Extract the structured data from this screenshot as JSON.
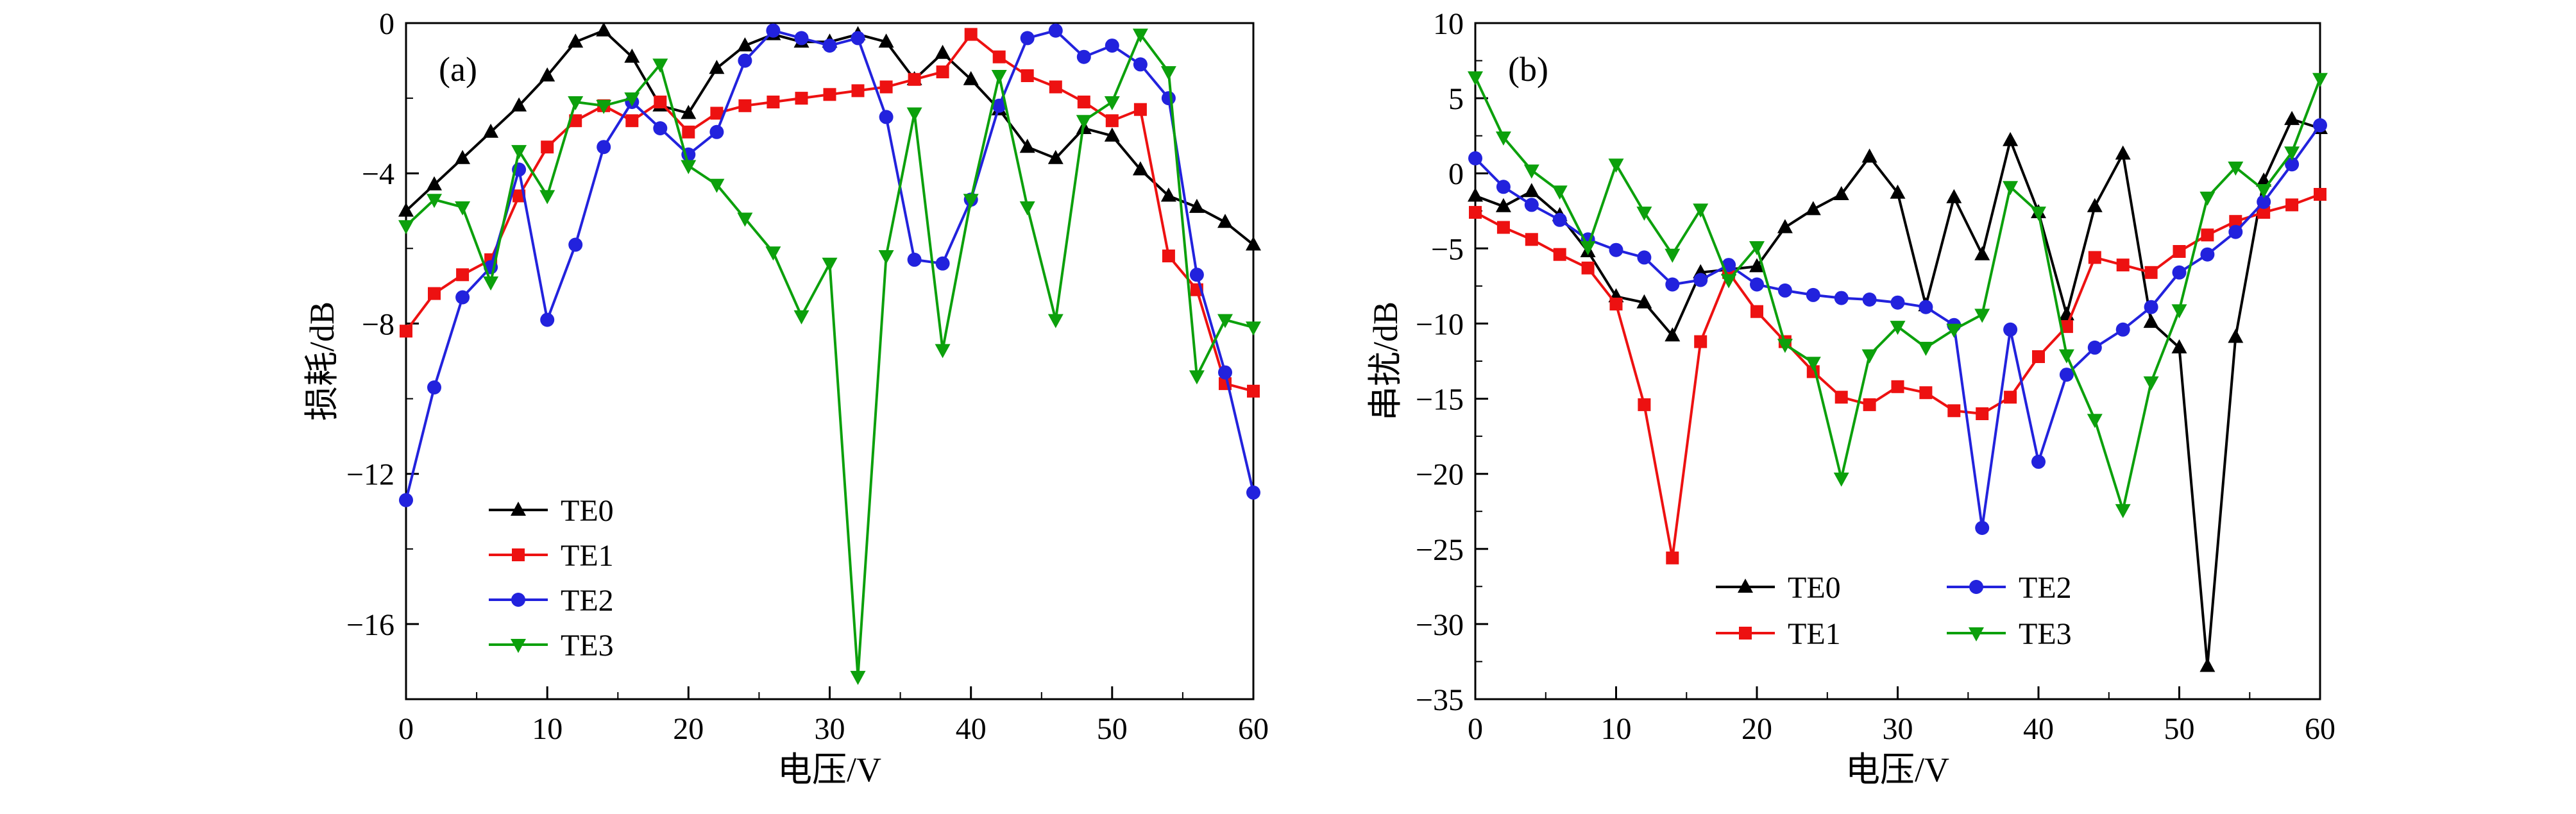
{
  "figure": {
    "background": "#ffffff",
    "panel_a_label": "(a)",
    "panel_b_label": "(b)"
  },
  "chart_data": [
    {
      "id": "a",
      "type": "line",
      "panel_label": "(a)",
      "xlabel": "电压/V",
      "ylabel": "损耗/dB",
      "xlim": [
        0,
        60
      ],
      "ylim": [
        -18,
        0
      ],
      "xticks": [
        0,
        10,
        20,
        30,
        40,
        50,
        60
      ],
      "yticks": [
        0,
        -4,
        -8,
        -12,
        -16
      ],
      "x_minor_step": 5,
      "y_minor_step": 2,
      "grid": false,
      "legend_position": "lower-left",
      "legend_columns": 1,
      "x": [
        0,
        2,
        4,
        6,
        8,
        10,
        12,
        14,
        16,
        18,
        20,
        22,
        24,
        26,
        28,
        30,
        32,
        34,
        36,
        38,
        40,
        42,
        44,
        46,
        48,
        50,
        52,
        54,
        56,
        58,
        60
      ],
      "series": [
        {
          "name": "TE0",
          "color": "#000000",
          "marker": "triangle-up",
          "values": [
            -5.0,
            -4.3,
            -3.6,
            -2.9,
            -2.2,
            -1.4,
            -0.5,
            -0.2,
            -0.9,
            -2.2,
            -2.4,
            -1.2,
            -0.6,
            -0.3,
            -0.5,
            -0.5,
            -0.3,
            -0.5,
            -1.5,
            -0.8,
            -1.5,
            -2.3,
            -3.3,
            -3.6,
            -2.8,
            -3.0,
            -3.9,
            -4.6,
            -4.9,
            -5.3,
            -5.9
          ]
        },
        {
          "name": "TE1",
          "color": "#ed1111",
          "marker": "square",
          "values": [
            -8.2,
            -7.2,
            -6.7,
            -6.3,
            -4.6,
            -3.3,
            -2.6,
            -2.2,
            -2.6,
            -2.1,
            -2.9,
            -2.4,
            -2.2,
            -2.1,
            -2.0,
            -1.9,
            -1.8,
            -1.7,
            -1.5,
            -1.3,
            -0.3,
            -0.9,
            -1.4,
            -1.7,
            -2.1,
            -2.6,
            -2.3,
            -6.2,
            -7.1,
            -9.6,
            -9.8
          ]
        },
        {
          "name": "TE2",
          "color": "#2222dd",
          "marker": "circle",
          "values": [
            -12.7,
            -9.7,
            -7.3,
            -6.5,
            -3.9,
            -7.9,
            -5.9,
            -3.3,
            -2.1,
            -2.8,
            -3.5,
            -2.9,
            -1.0,
            -0.2,
            -0.4,
            -0.6,
            -0.4,
            -2.5,
            -6.3,
            -6.4,
            -4.7,
            -2.2,
            -0.4,
            -0.2,
            -0.9,
            -0.6,
            -1.1,
            -2.0,
            -6.7,
            -9.3,
            -12.5
          ]
        },
        {
          "name": "TE3",
          "color": "#0ca00c",
          "marker": "triangle-down",
          "values": [
            -5.4,
            -4.7,
            -4.9,
            -6.9,
            -3.4,
            -4.6,
            -2.1,
            -2.2,
            -2.0,
            -1.1,
            -3.8,
            -4.3,
            -5.2,
            -6.1,
            -7.8,
            -6.4,
            -17.4,
            -6.2,
            -2.4,
            -8.7,
            -4.7,
            -1.4,
            -4.9,
            -7.9,
            -2.6,
            -2.1,
            -0.3,
            -1.3,
            -9.4,
            -7.9,
            -8.1
          ]
        }
      ]
    },
    {
      "id": "b",
      "type": "line",
      "panel_label": "(b)",
      "xlabel": "电压/V",
      "ylabel": "串扰/dB",
      "xlim": [
        0,
        60
      ],
      "ylim": [
        -35,
        10
      ],
      "xticks": [
        0,
        10,
        20,
        30,
        40,
        50,
        60
      ],
      "yticks": [
        10,
        5,
        0,
        -5,
        -10,
        -15,
        -20,
        -25,
        -30,
        -35
      ],
      "x_minor_step": 5,
      "y_minor_step": 2.5,
      "grid": false,
      "legend_position": "lower-center",
      "legend_columns": 2,
      "x": [
        0,
        2,
        4,
        6,
        8,
        10,
        12,
        14,
        16,
        18,
        20,
        22,
        24,
        26,
        28,
        30,
        32,
        34,
        36,
        38,
        40,
        42,
        44,
        46,
        48,
        50,
        52,
        54,
        56,
        58,
        60
      ],
      "series": [
        {
          "name": "TE0",
          "color": "#000000",
          "marker": "triangle-up",
          "values": [
            -1.5,
            -2.2,
            -1.2,
            -2.8,
            -5.2,
            -8.2,
            -8.6,
            -10.8,
            -6.6,
            -6.4,
            -6.2,
            -3.6,
            -2.4,
            -1.4,
            1.1,
            -1.3,
            -8.8,
            -1.6,
            -5.4,
            2.2,
            -2.6,
            -9.4,
            -2.2,
            1.3,
            -9.9,
            -11.6,
            -32.8,
            -10.9,
            -0.5,
            3.6,
            3.0
          ]
        },
        {
          "name": "TE1",
          "color": "#ed1111",
          "marker": "square",
          "values": [
            -2.6,
            -3.6,
            -4.4,
            -5.4,
            -6.3,
            -8.7,
            -15.4,
            -25.6,
            -11.2,
            -6.6,
            -9.2,
            -11.2,
            -13.2,
            -14.9,
            -15.4,
            -14.2,
            -14.6,
            -15.8,
            -16.0,
            -14.9,
            -12.2,
            -10.2,
            -5.6,
            -6.1,
            -6.6,
            -5.2,
            -4.1,
            -3.2,
            -2.6,
            -2.1,
            -1.4
          ]
        },
        {
          "name": "TE2",
          "color": "#2222dd",
          "marker": "circle",
          "values": [
            1.0,
            -0.9,
            -2.1,
            -3.1,
            -4.4,
            -5.1,
            -5.6,
            -7.4,
            -7.1,
            -6.1,
            -7.4,
            -7.8,
            -8.1,
            -8.3,
            -8.4,
            -8.6,
            -8.9,
            -10.1,
            -23.6,
            -10.4,
            -19.2,
            -13.4,
            -11.6,
            -10.4,
            -8.9,
            -6.6,
            -5.4,
            -3.9,
            -1.9,
            0.6,
            3.2
          ]
        },
        {
          "name": "TE3",
          "color": "#0ca00c",
          "marker": "triangle-down",
          "values": [
            6.4,
            2.4,
            0.2,
            -1.2,
            -4.9,
            0.6,
            -2.6,
            -5.4,
            -2.4,
            -7.1,
            -4.9,
            -11.4,
            -12.6,
            -20.3,
            -12.1,
            -10.2,
            -11.6,
            -10.4,
            -9.4,
            -0.9,
            -2.6,
            -12.1,
            -16.4,
            -22.4,
            -13.9,
            -9.1,
            -1.6,
            0.4,
            -1.1,
            1.4,
            6.3
          ]
        }
      ]
    }
  ]
}
